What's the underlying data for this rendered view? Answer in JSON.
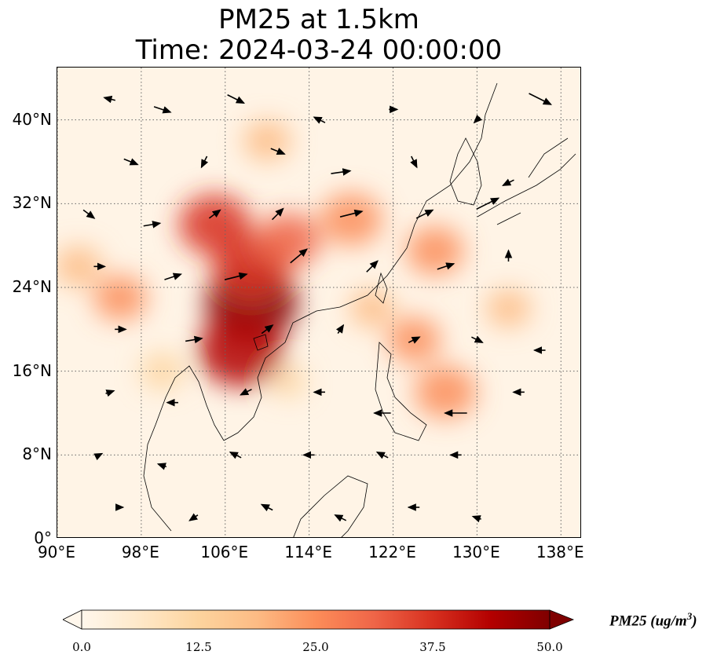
{
  "title": {
    "line1": "PM25 at 1.5km",
    "line2": "Time: 2024-03-24 00:00:00"
  },
  "map": {
    "projection": "PlateCarree",
    "lon_range": [
      90,
      140
    ],
    "lat_range": [
      0,
      45
    ],
    "gridlines": "dotted",
    "lon_ticks": [
      {
        "value": 90,
        "label": "90°E"
      },
      {
        "value": 98,
        "label": "98°E"
      },
      {
        "value": 106,
        "label": "106°E"
      },
      {
        "value": 114,
        "label": "114°E"
      },
      {
        "value": 122,
        "label": "122°E"
      },
      {
        "value": 130,
        "label": "130°E"
      },
      {
        "value": 138,
        "label": "138°E"
      }
    ],
    "lat_ticks": [
      {
        "value": 0,
        "label": "0°"
      },
      {
        "value": 8,
        "label": "8°N"
      },
      {
        "value": 16,
        "label": "16°N"
      },
      {
        "value": 24,
        "label": "24°N"
      },
      {
        "value": 32,
        "label": "32°N"
      },
      {
        "value": 40,
        "label": "40°N"
      }
    ],
    "pm25_hotspots": [
      {
        "lon": 108.5,
        "lat": 22.5,
        "value": 50
      },
      {
        "lon": 107.5,
        "lat": 18.0,
        "value": 45
      },
      {
        "lon": 108.5,
        "lat": 26.0,
        "value": 40
      },
      {
        "lon": 105.0,
        "lat": 30.0,
        "value": 35
      },
      {
        "lon": 112.0,
        "lat": 28.5,
        "value": 30
      },
      {
        "lon": 118.0,
        "lat": 30.5,
        "value": 28
      },
      {
        "lon": 126.0,
        "lat": 27.5,
        "value": 25
      },
      {
        "lon": 127.0,
        "lat": 14.0,
        "value": 28
      },
      {
        "lon": 124.0,
        "lat": 19.0,
        "value": 22
      },
      {
        "lon": 96.0,
        "lat": 23.0,
        "value": 22
      },
      {
        "lon": 110.0,
        "lat": 38.0,
        "value": 18
      },
      {
        "lon": 100.0,
        "lat": 16.0,
        "value": 15
      },
      {
        "lon": 92.0,
        "lat": 26.0,
        "value": 18
      },
      {
        "lon": 120.0,
        "lat": 22.0,
        "value": 16
      },
      {
        "lon": 133.0,
        "lat": 22.0,
        "value": 16
      },
      {
        "lon": 112.0,
        "lat": 15.0,
        "value": 10
      }
    ],
    "wind_vectors": [
      {
        "lon": 95,
        "lat": 42,
        "u": -2,
        "v": 0.5
      },
      {
        "lon": 100,
        "lat": 41,
        "u": 3,
        "v": -1
      },
      {
        "lon": 107,
        "lat": 42,
        "u": 3,
        "v": -1.5
      },
      {
        "lon": 115,
        "lat": 40,
        "u": -2,
        "v": 1
      },
      {
        "lon": 122,
        "lat": 41,
        "u": 1.5,
        "v": 0
      },
      {
        "lon": 130,
        "lat": 40,
        "u": -1,
        "v": -1
      },
      {
        "lon": 136,
        "lat": 42,
        "u": 4,
        "v": -2
      },
      {
        "lon": 97,
        "lat": 36,
        "u": 2.5,
        "v": -1
      },
      {
        "lon": 104,
        "lat": 36,
        "u": -1,
        "v": -2
      },
      {
        "lon": 111,
        "lat": 37,
        "u": 2.5,
        "v": -1
      },
      {
        "lon": 117,
        "lat": 35,
        "u": 3.5,
        "v": 0.5
      },
      {
        "lon": 124,
        "lat": 36,
        "u": 1,
        "v": -2
      },
      {
        "lon": 133,
        "lat": 34,
        "u": -2,
        "v": -1
      },
      {
        "lon": 93,
        "lat": 31,
        "u": 2,
        "v": -1.5
      },
      {
        "lon": 99,
        "lat": 30,
        "u": 3,
        "v": 0.5
      },
      {
        "lon": 105,
        "lat": 31,
        "u": 2,
        "v": 1.5
      },
      {
        "lon": 111,
        "lat": 31,
        "u": 2,
        "v": 2
      },
      {
        "lon": 118,
        "lat": 31,
        "u": 4,
        "v": 1
      },
      {
        "lon": 125,
        "lat": 31,
        "u": 3,
        "v": 1.5
      },
      {
        "lon": 131,
        "lat": 32,
        "u": 4,
        "v": 2
      },
      {
        "lon": 94,
        "lat": 26,
        "u": 2,
        "v": 0
      },
      {
        "lon": 101,
        "lat": 25,
        "u": 3,
        "v": 1
      },
      {
        "lon": 107,
        "lat": 25,
        "u": 4,
        "v": 1
      },
      {
        "lon": 113,
        "lat": 27,
        "u": 3,
        "v": 2.5
      },
      {
        "lon": 120,
        "lat": 26,
        "u": 2,
        "v": 2
      },
      {
        "lon": 127,
        "lat": 26,
        "u": 3,
        "v": 1
      },
      {
        "lon": 133,
        "lat": 27,
        "u": 0,
        "v": 2
      },
      {
        "lon": 96,
        "lat": 20,
        "u": 2,
        "v": 0
      },
      {
        "lon": 103,
        "lat": 19,
        "u": 3,
        "v": 0.5
      },
      {
        "lon": 110,
        "lat": 20,
        "u": 2,
        "v": 1.5
      },
      {
        "lon": 117,
        "lat": 20,
        "u": 1,
        "v": 1.5
      },
      {
        "lon": 124,
        "lat": 19,
        "u": 2,
        "v": 1
      },
      {
        "lon": 130,
        "lat": 19,
        "u": 2,
        "v": -1
      },
      {
        "lon": 136,
        "lat": 18,
        "u": -2,
        "v": 0
      },
      {
        "lon": 95,
        "lat": 14,
        "u": 1.5,
        "v": 0.5
      },
      {
        "lon": 101,
        "lat": 13,
        "u": -2,
        "v": 0
      },
      {
        "lon": 108,
        "lat": 14,
        "u": -2,
        "v": -1
      },
      {
        "lon": 115,
        "lat": 14,
        "u": -2,
        "v": 0
      },
      {
        "lon": 121,
        "lat": 12,
        "u": -3,
        "v": 0
      },
      {
        "lon": 128,
        "lat": 12,
        "u": -4,
        "v": 0
      },
      {
        "lon": 134,
        "lat": 14,
        "u": -2,
        "v": 0
      },
      {
        "lon": 94,
        "lat": 8,
        "u": 1,
        "v": 0.5
      },
      {
        "lon": 100,
        "lat": 7,
        "u": -1.5,
        "v": 0.5
      },
      {
        "lon": 107,
        "lat": 8,
        "u": -2,
        "v": 1
      },
      {
        "lon": 114,
        "lat": 8,
        "u": -2,
        "v": 0
      },
      {
        "lon": 121,
        "lat": 8,
        "u": -2,
        "v": 1
      },
      {
        "lon": 128,
        "lat": 8,
        "u": -2,
        "v": 0
      },
      {
        "lon": 96,
        "lat": 3,
        "u": 1,
        "v": 0
      },
      {
        "lon": 103,
        "lat": 2,
        "u": -1.5,
        "v": -1
      },
      {
        "lon": 110,
        "lat": 3,
        "u": -2,
        "v": 1
      },
      {
        "lon": 117,
        "lat": 2,
        "u": -2,
        "v": 1
      },
      {
        "lon": 124,
        "lat": 3,
        "u": -2,
        "v": 0
      },
      {
        "lon": 130,
        "lat": 2,
        "u": -1.5,
        "v": 0.5
      }
    ]
  },
  "colorbar": {
    "label_main": "PM25 (ug/m",
    "label_sup": "3",
    "label_close": ")",
    "vmin": 0.0,
    "vmax": 50.0,
    "extend": "both",
    "colormap": "OrRd",
    "colors": [
      "#fff7ec",
      "#fee8c8",
      "#fdd49e",
      "#fdbb84",
      "#fc8d59",
      "#ef6548",
      "#d7301f",
      "#b30000",
      "#7f0000"
    ],
    "ticks": [
      {
        "value": 0.0,
        "label": "0.0"
      },
      {
        "value": 12.5,
        "label": "12.5"
      },
      {
        "value": 25.0,
        "label": "25.0"
      },
      {
        "value": 37.5,
        "label": "37.5"
      },
      {
        "value": 50.0,
        "label": "50.0"
      }
    ]
  }
}
